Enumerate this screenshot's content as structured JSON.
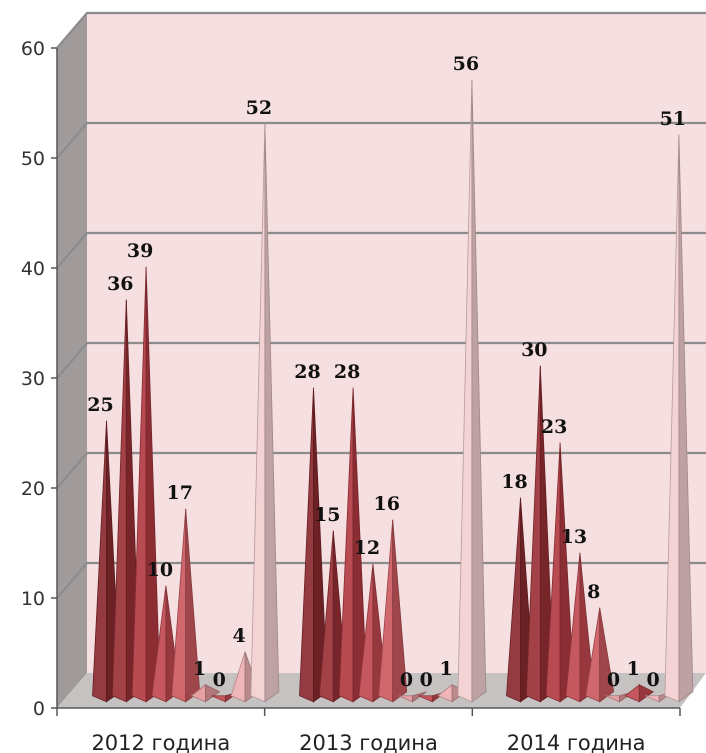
{
  "chart_data": {
    "type": "bar",
    "style": "3d-pyramid",
    "categories": [
      "2012 година",
      "2013 година",
      "2014 година"
    ],
    "series_values": [
      [
        25,
        36,
        39,
        10,
        17,
        1,
        0,
        4,
        52
      ],
      [
        28,
        15,
        28,
        12,
        16,
        0,
        0,
        1,
        56
      ],
      [
        18,
        30,
        23,
        13,
        8,
        0,
        1,
        0,
        51
      ]
    ],
    "ylim": [
      0,
      60
    ],
    "yticks": [
      "0",
      "10",
      "20",
      "30",
      "40",
      "50",
      "60"
    ],
    "grid": true,
    "legend": "none",
    "colors": {
      "back_wall": "#f5dfe0",
      "side_wall": "#a09a9a",
      "floor": "#c6c2c2",
      "grid": "#8c8c8c",
      "series": [
        "#8b2a30",
        "#9a3036",
        "#b23a42",
        "#c04850",
        "#cc5a60",
        "#e3999c",
        "#c04850",
        "#eeb0b2",
        "#f3cfd0"
      ]
    }
  }
}
